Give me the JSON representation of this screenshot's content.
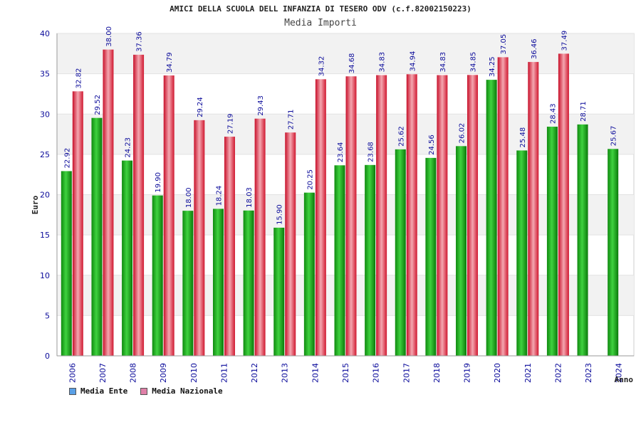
{
  "chart_data": {
    "type": "bar",
    "title": "AMICI DELLA SCUOLA DELL INFANZIA DI TESERO ODV (c.f.82002150223)",
    "subtitle": "Media Importi",
    "xlabel": "Anno",
    "ylabel": "Euro",
    "ylim": [
      0,
      40
    ],
    "yticks": [
      "0",
      "5",
      "10",
      "15",
      "20",
      "25",
      "30",
      "35",
      "40"
    ],
    "categories": [
      "2006",
      "2007",
      "2008",
      "2009",
      "2010",
      "2011",
      "2012",
      "2013",
      "2014",
      "2015",
      "2016",
      "2017",
      "2018",
      "2019",
      "2020",
      "2021",
      "2022",
      "2023",
      "2024"
    ],
    "series": [
      {
        "name": "Media Ente",
        "values": [
          22.92,
          29.52,
          24.23,
          19.9,
          18.0,
          18.24,
          18.03,
          15.9,
          20.25,
          23.64,
          23.68,
          25.62,
          24.56,
          26.02,
          34.25,
          25.48,
          28.43,
          28.71,
          25.67
        ],
        "labels": [
          "22.92",
          "29.52",
          "24.23",
          "19.90",
          "18.00",
          "18.24",
          "18.03",
          "15.90",
          "20.25",
          "23.64",
          "23.68",
          "25.62",
          "24.56",
          "26.02",
          "34.25",
          "25.48",
          "28.43",
          "28.71",
          "25.67"
        ]
      },
      {
        "name": "Media Nazionale",
        "values": [
          32.82,
          38.0,
          37.36,
          34.79,
          29.24,
          27.19,
          29.43,
          27.71,
          34.32,
          34.68,
          34.83,
          34.94,
          34.83,
          34.85,
          37.05,
          36.46,
          37.49,
          null,
          null
        ],
        "labels": [
          "32.82",
          "38.00",
          "37.36",
          "34.79",
          "29.24",
          "27.19",
          "29.43",
          "27.71",
          "34.32",
          "34.68",
          "34.83",
          "34.94",
          "34.83",
          "34.85",
          "37.05",
          "36.46",
          "37.49",
          "",
          ""
        ]
      }
    ],
    "colors": {
      "ente_bar": "#1fb01f",
      "nazionale_bar": "#e8283a",
      "ente_legend": "#5aa0e6",
      "nazionale_legend": "#e080a8",
      "band": "#f2f2f2",
      "tick_text": "#0a0a9a"
    },
    "grid": true,
    "legend_position": "bottom-left"
  }
}
